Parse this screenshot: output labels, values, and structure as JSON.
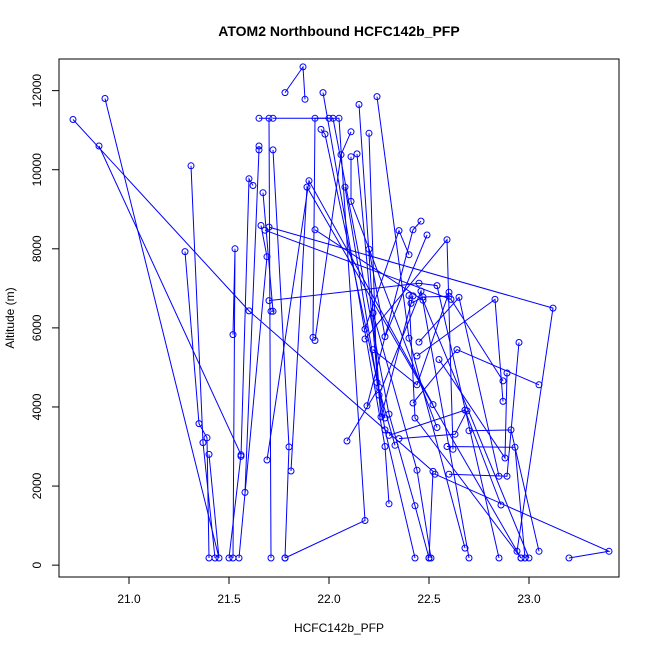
{
  "chart_data": {
    "type": "line",
    "title": "ATOM2 Northbound HCFC142b_PFP",
    "xlabel": "HCFC142b_PFP",
    "ylabel": "Altitude (m)",
    "xlim": [
      20.65,
      23.45
    ],
    "ylim": [
      -300,
      12800
    ],
    "xticks": [
      21.0,
      21.5,
      22.0,
      22.5,
      23.0
    ],
    "xtick_labels": [
      "21.0",
      "21.5",
      "22.0",
      "22.5",
      "23.0"
    ],
    "yticks": [
      0,
      2000,
      4000,
      6000,
      8000,
      10000,
      12000
    ],
    "ytick_labels": [
      "0",
      "2000",
      "4000",
      "6000",
      "8000",
      "10000",
      "12000"
    ],
    "grid": false,
    "color": "#0000ff",
    "marker": "open-circle",
    "series": [
      {
        "points": [
          [
            20.72,
            11270
          ],
          [
            21.6,
            6430
          ],
          [
            22.52,
            2370
          ],
          [
            22.5,
            180
          ]
        ]
      },
      {
        "points": [
          [
            20.85,
            10600
          ],
          [
            21.56,
            2790
          ],
          [
            21.5,
            180
          ]
        ]
      },
      {
        "points": [
          [
            20.88,
            11800
          ],
          [
            21.45,
            180
          ],
          [
            21.4,
            2800
          ]
        ]
      },
      {
        "points": [
          [
            21.28,
            7930
          ],
          [
            21.35,
            3580
          ],
          [
            21.39,
            3220
          ],
          [
            21.4,
            180
          ]
        ]
      },
      {
        "points": [
          [
            21.31,
            10100
          ],
          [
            21.37,
            3100
          ],
          [
            21.43,
            180
          ]
        ]
      },
      {
        "points": [
          [
            21.52,
            5830
          ],
          [
            21.53,
            8000
          ],
          [
            21.52,
            180
          ]
        ]
      },
      {
        "points": [
          [
            21.56,
            2750
          ],
          [
            21.6,
            9770
          ],
          [
            21.62,
            9600
          ]
        ]
      },
      {
        "points": [
          [
            21.58,
            1840
          ],
          [
            21.65,
            10500
          ],
          [
            21.65,
            10600
          ]
        ]
      },
      {
        "points": [
          [
            21.66,
            8590
          ],
          [
            21.69,
            7800
          ],
          [
            21.55,
            180
          ]
        ]
      },
      {
        "points": [
          [
            21.67,
            9420
          ],
          [
            21.72,
            6420
          ],
          [
            21.71,
            6420
          ]
        ]
      },
      {
        "points": [
          [
            21.65,
            11300
          ],
          [
            21.7,
            11300
          ],
          [
            21.71,
            180
          ]
        ]
      },
      {
        "points": [
          [
            21.72,
            10500
          ],
          [
            21.8,
            2990
          ],
          [
            21.78,
            180
          ]
        ]
      },
      {
        "points": [
          [
            21.69,
            2660
          ],
          [
            21.9,
            9720
          ],
          [
            22.52,
            4060
          ]
        ]
      },
      {
        "points": [
          [
            21.81,
            2380
          ],
          [
            21.89,
            9560
          ],
          [
            22.96,
            180
          ]
        ]
      },
      {
        "points": [
          [
            21.72,
            11300
          ],
          [
            22.05,
            11300
          ],
          [
            22.18,
            1130
          ],
          [
            21.78,
            180
          ]
        ]
      },
      {
        "points": [
          [
            21.92,
            5760
          ],
          [
            21.93,
            11300
          ],
          [
            22.0,
            11300
          ]
        ]
      },
      {
        "points": [
          [
            21.78,
            11950
          ],
          [
            21.87,
            12600
          ],
          [
            21.88,
            11780
          ]
        ]
      },
      {
        "points": [
          [
            21.96,
            11020
          ],
          [
            21.98,
            10900
          ],
          [
            22.28,
            3720
          ]
        ]
      },
      {
        "points": [
          [
            21.97,
            11950
          ],
          [
            22.28,
            3000
          ],
          [
            22.3,
            1550
          ]
        ]
      },
      {
        "points": [
          [
            21.93,
            5680
          ],
          [
            22.06,
            10380
          ],
          [
            22.11,
            10960
          ]
        ]
      },
      {
        "points": [
          [
            22.09,
            3140
          ],
          [
            22.25,
            4500
          ],
          [
            22.22,
            6380
          ]
        ]
      },
      {
        "points": [
          [
            22.02,
            11300
          ],
          [
            22.3,
            3820
          ],
          [
            22.43,
            1500
          ],
          [
            22.5,
            180
          ]
        ]
      },
      {
        "points": [
          [
            22.08,
            9560
          ],
          [
            22.28,
            3420
          ],
          [
            22.43,
            180
          ]
        ]
      },
      {
        "points": [
          [
            22.11,
            10330
          ],
          [
            22.11,
            9200
          ],
          [
            22.54,
            3480
          ]
        ]
      },
      {
        "points": [
          [
            22.15,
            11650
          ],
          [
            22.22,
            6370
          ],
          [
            22.44,
            2400
          ],
          [
            22.51,
            180
          ]
        ]
      },
      {
        "points": [
          [
            22.14,
            10400
          ],
          [
            22.26,
            3750
          ],
          [
            22.42,
            6810
          ]
        ]
      },
      {
        "points": [
          [
            22.2,
            10920
          ],
          [
            22.24,
            4620
          ],
          [
            22.33,
            3030
          ]
        ]
      },
      {
        "points": [
          [
            22.24,
            11850
          ],
          [
            22.4,
            5740
          ],
          [
            22.68,
            430
          ]
        ]
      },
      {
        "points": [
          [
            21.93,
            8480
          ],
          [
            22.47,
            6700
          ],
          [
            23.0,
            180
          ]
        ]
      },
      {
        "points": [
          [
            22.18,
            5970
          ],
          [
            22.35,
            8460
          ],
          [
            22.4,
            7850
          ]
        ]
      },
      {
        "points": [
          [
            22.19,
            4030
          ],
          [
            22.42,
            8480
          ],
          [
            22.46,
            8700
          ]
        ]
      },
      {
        "points": [
          [
            22.2,
            7990
          ],
          [
            22.28,
            5780
          ],
          [
            22.49,
            8350
          ]
        ]
      },
      {
        "points": [
          [
            22.18,
            5720
          ],
          [
            22.59,
            8230
          ],
          [
            22.62,
            2930
          ]
        ]
      },
      {
        "points": [
          [
            22.22,
            5450
          ],
          [
            22.44,
            4560
          ],
          [
            22.6,
            6900
          ]
        ]
      },
      {
        "points": [
          [
            22.25,
            4300
          ],
          [
            22.46,
            6930
          ],
          [
            22.7,
            180
          ]
        ]
      },
      {
        "points": [
          [
            22.4,
            6820
          ],
          [
            22.43,
            3720
          ],
          [
            22.96,
            180
          ]
        ]
      },
      {
        "points": [
          [
            22.41,
            6620
          ],
          [
            22.47,
            6780
          ],
          [
            22.6,
            6800
          ]
        ]
      },
      {
        "points": [
          [
            22.42,
            4100
          ],
          [
            22.64,
            5450
          ],
          [
            23.05,
            4560
          ]
        ]
      },
      {
        "points": [
          [
            22.45,
            5640
          ],
          [
            22.65,
            6770
          ],
          [
            22.85,
            2250
          ]
        ]
      },
      {
        "points": [
          [
            21.7,
            6690
          ],
          [
            22.45,
            7130
          ],
          [
            22.54,
            7070
          ],
          [
            22.85,
            180
          ]
        ]
      },
      {
        "points": [
          [
            21.68,
            8470
          ],
          [
            22.61,
            6720
          ],
          [
            22.87,
            4660
          ]
        ]
      },
      {
        "points": [
          [
            22.35,
            3200
          ],
          [
            22.63,
            3310
          ],
          [
            22.69,
            3900
          ]
        ]
      },
      {
        "points": [
          [
            22.3,
            3280
          ],
          [
            22.68,
            3920
          ],
          [
            22.86,
            1520
          ]
        ]
      },
      {
        "points": [
          [
            22.44,
            5290
          ],
          [
            22.83,
            6720
          ],
          [
            22.87,
            4140
          ]
        ]
      },
      {
        "points": [
          [
            22.55,
            5200
          ],
          [
            22.88,
            2710
          ],
          [
            22.89,
            4860
          ]
        ]
      },
      {
        "points": [
          [
            22.6,
            2300
          ],
          [
            22.89,
            2250
          ],
          [
            22.95,
            5630
          ]
        ]
      },
      {
        "points": [
          [
            21.7,
            8550
          ],
          [
            23.12,
            6500
          ],
          [
            22.94,
            350
          ]
        ]
      },
      {
        "points": [
          [
            22.7,
            3400
          ],
          [
            22.91,
            3420
          ],
          [
            23.05,
            350
          ]
        ]
      },
      {
        "points": [
          [
            22.59,
            3000
          ],
          [
            22.93,
            2980
          ],
          [
            22.98,
            180
          ]
        ]
      },
      {
        "points": [
          [
            22.53,
            2300
          ],
          [
            23.4,
            350
          ],
          [
            23.2,
            180
          ]
        ]
      }
    ]
  }
}
